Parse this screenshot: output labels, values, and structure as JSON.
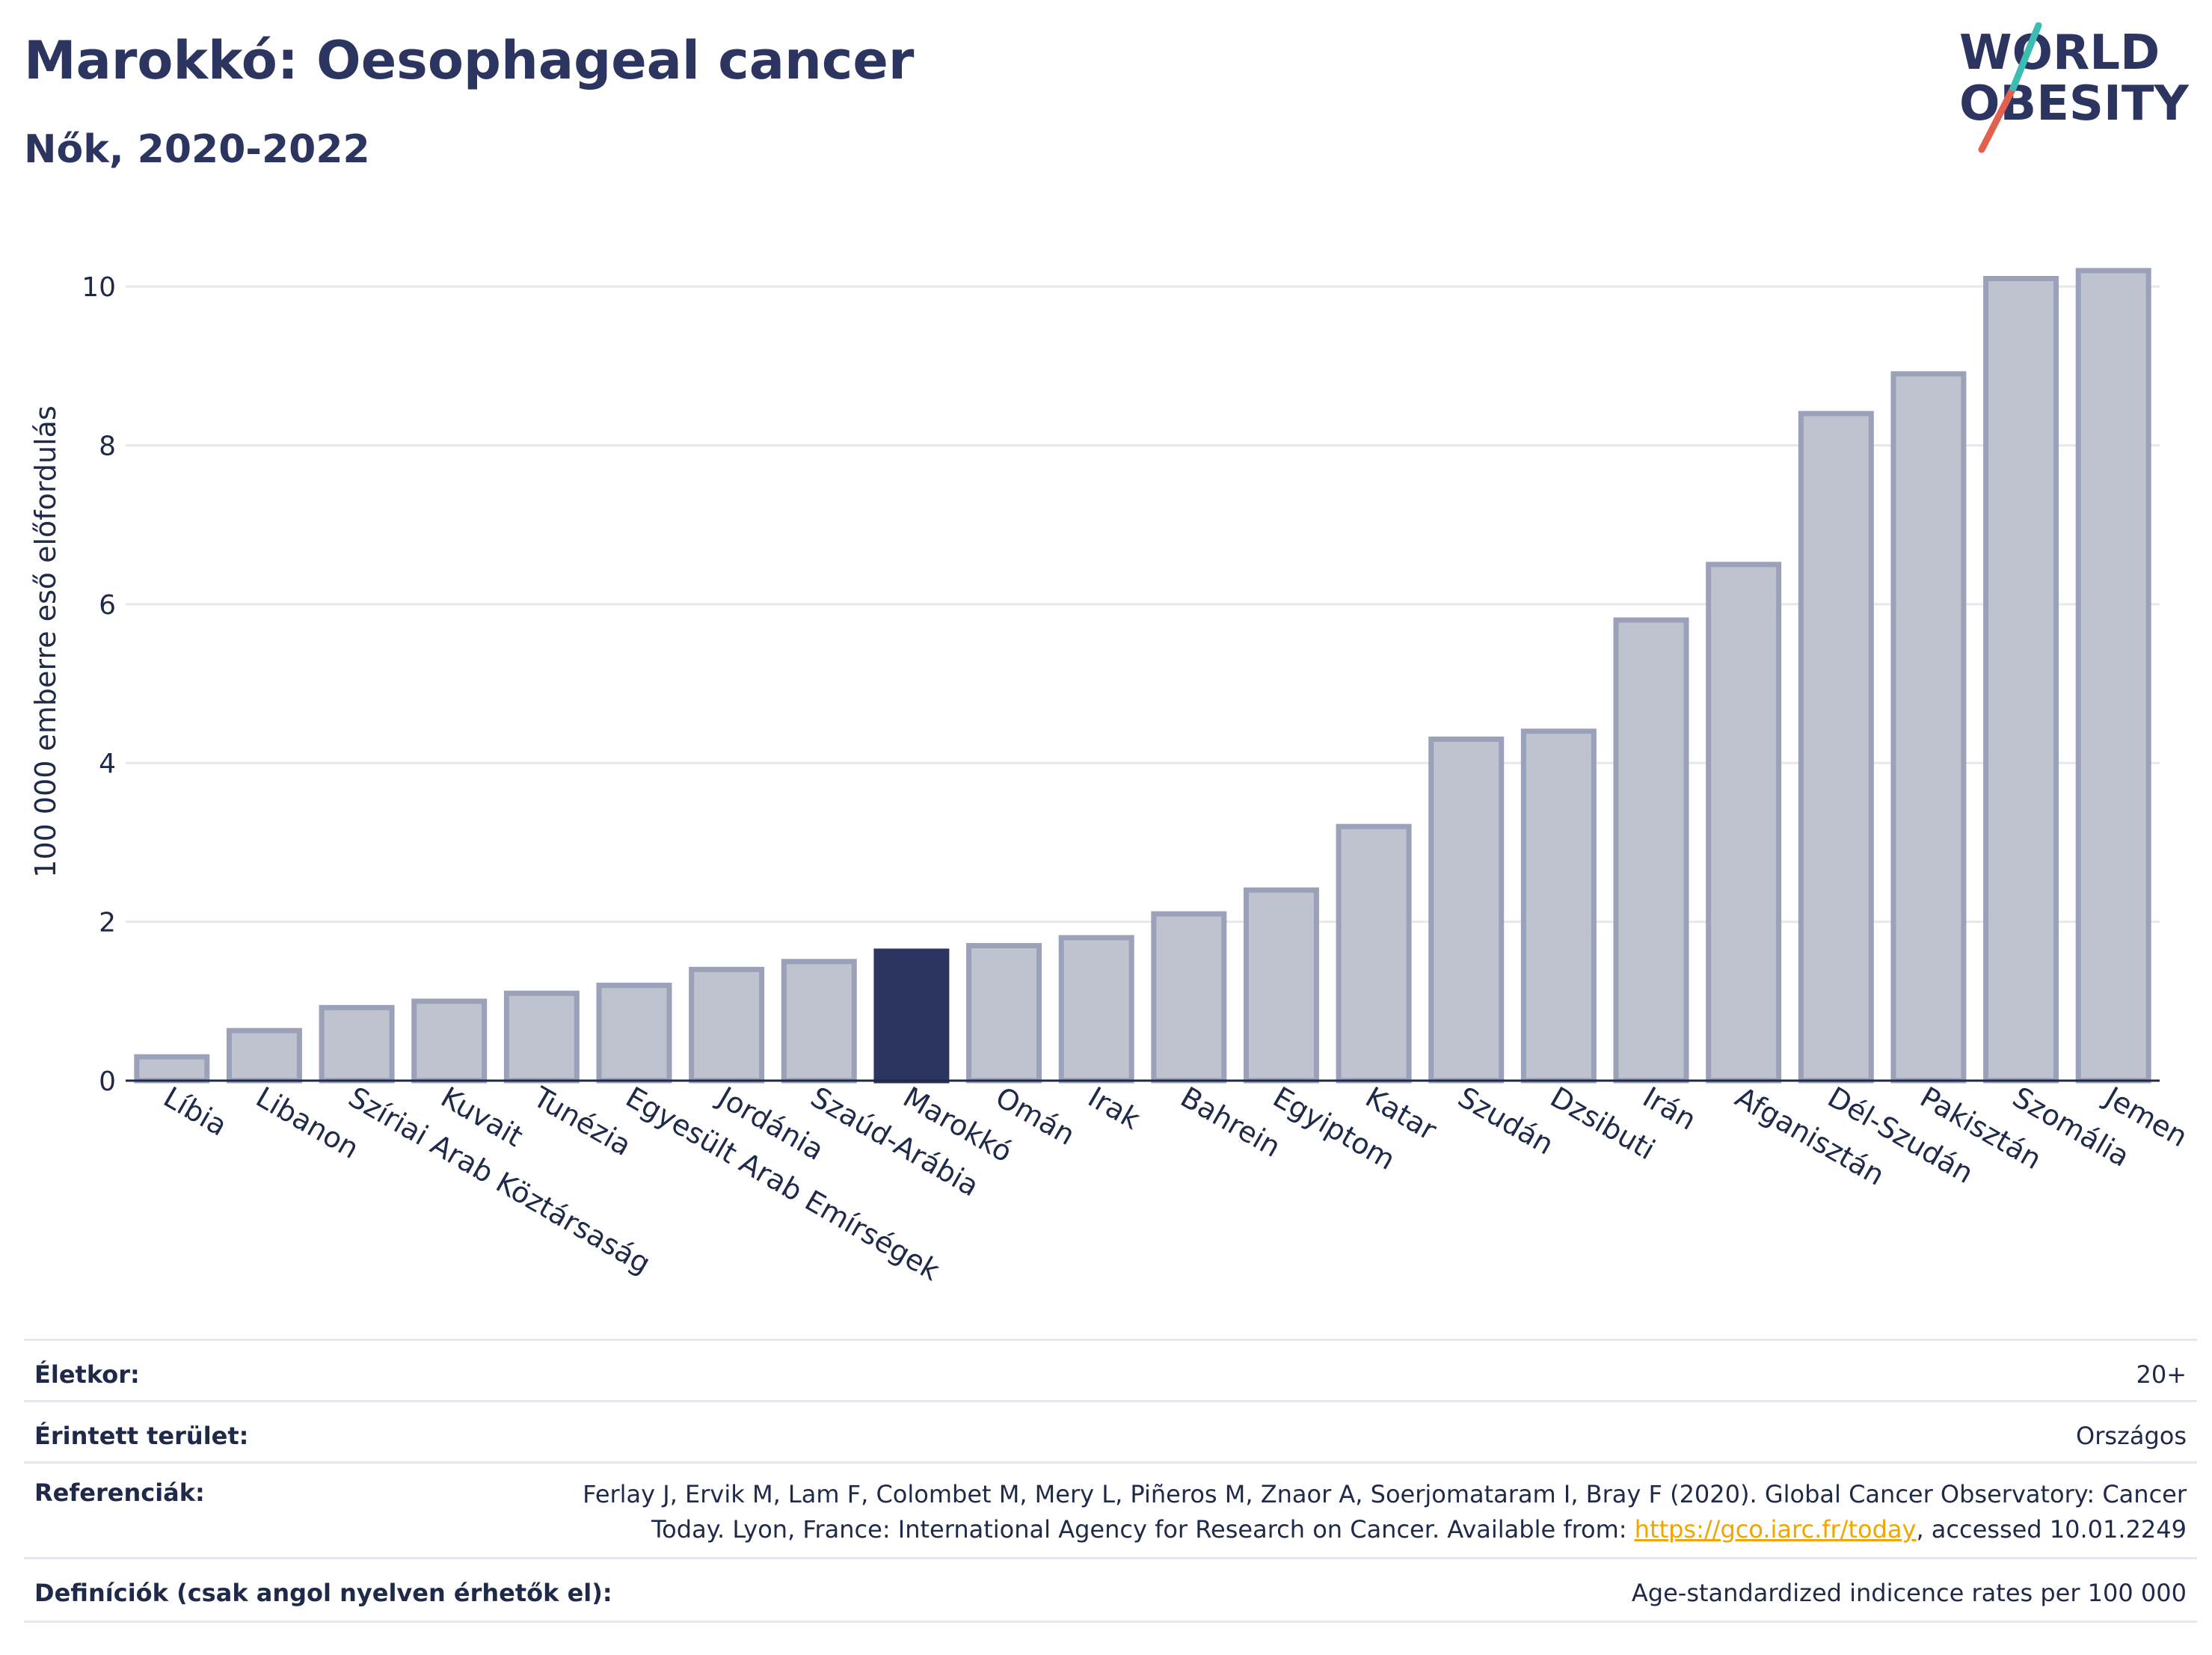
{
  "header": {
    "title": "Marokkó: Oesophageal cancer",
    "subtitle": "Nők, 2020-2022"
  },
  "logo": {
    "line1": "WORLD",
    "line2": "OBESITY"
  },
  "colors": {
    "bar": "#bfc3cf",
    "bar_border": "#9aa1b8",
    "highlight": "#2c3560",
    "accent_red": "#e4604e",
    "accent_teal": "#3bbdb3"
  },
  "chart_data": {
    "type": "bar",
    "ylabel": "100 000 emberre eső előfordulás",
    "ylim": [
      0,
      10.5
    ],
    "yticks": [
      0,
      2,
      4,
      6,
      8,
      10
    ],
    "highlight": "Marokkó",
    "categories": [
      "Líbia",
      "Libanon",
      "Szíriai Arab Köztársaság",
      "Kuvait",
      "Tunézia",
      "Egyesült Arab Emírségek",
      "Jordánia",
      "Szaúd-Arábia",
      "Marokkó",
      "Omán",
      "Irak",
      "Bahrein",
      "Egyiptom",
      "Katar",
      "Szudán",
      "Dzsibuti",
      "Irán",
      "Afganisztán",
      "Dél-Szudán",
      "Pakisztán",
      "Szomália",
      "Jemen"
    ],
    "values": [
      0.3,
      0.63,
      0.92,
      1.0,
      1.1,
      1.2,
      1.4,
      1.5,
      1.63,
      1.7,
      1.8,
      2.1,
      2.4,
      3.2,
      4.3,
      4.4,
      5.8,
      6.5,
      8.4,
      8.9,
      10.1,
      10.2
    ],
    "grid": true
  },
  "meta": {
    "age_label": "Életkor:",
    "age_value": "20+",
    "area_label": "Érintett terület:",
    "area_value": "Országos",
    "ref_label": "Referenciák:",
    "ref_line1": "Ferlay J, Ervik M, Lam F, Colombet M, Mery L, Piñeros M, Znaor A, Soerjomataram I, Bray F (2020). Global Cancer Observatory: Cancer",
    "ref_line2_pre": "Today. Lyon, France: International Agency for Research on Cancer. Available from: ",
    "ref_link": "https://gco.iarc.fr/today",
    "ref_line2_post": ", accessed 10.01.2249",
    "def_label": "Definíciók (csak angol nyelven érhetők el):",
    "def_value": "Age-standardized indicence rates per 100 000"
  }
}
